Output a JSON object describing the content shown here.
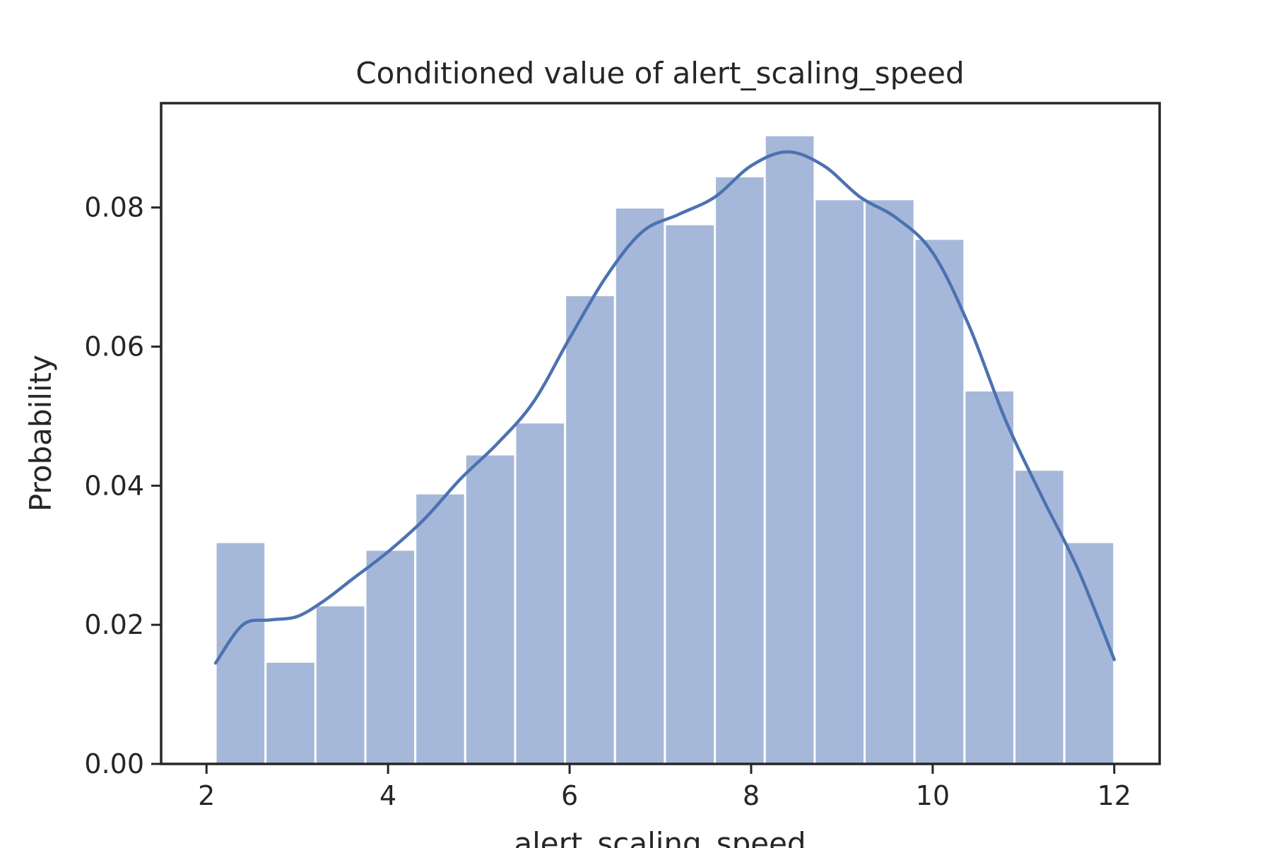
{
  "chart_data": {
    "type": "bar",
    "title": "Conditioned value of alert_scaling_speed",
    "xlabel": "alert_scaling_speed",
    "ylabel": "Probability",
    "xlim": [
      1.5,
      12.5
    ],
    "ylim": [
      0,
      0.095
    ],
    "xticks": [
      2,
      4,
      6,
      8,
      10,
      12
    ],
    "xtick_labels": [
      "2",
      "4",
      "6",
      "8",
      "10",
      "12"
    ],
    "yticks": [
      0,
      0.02,
      0.04,
      0.06,
      0.08
    ],
    "ytick_labels": [
      "0.00",
      "0.02",
      "0.04",
      "0.06",
      "0.08"
    ],
    "grid": false,
    "bin_edges": [
      2.1,
      2.65,
      3.2,
      3.75,
      4.3,
      4.85,
      5.4,
      5.95,
      6.5,
      7.05,
      7.6,
      8.15,
      8.7,
      9.25,
      9.8,
      10.35,
      10.9,
      11.45,
      12.0
    ],
    "values": [
      0.0319,
      0.0147,
      0.0228,
      0.0308,
      0.0389,
      0.0445,
      0.0491,
      0.0674,
      0.08,
      0.0776,
      0.0845,
      0.0904,
      0.0812,
      0.0812,
      0.0755,
      0.0537,
      0.0423,
      0.0319
    ],
    "series": [
      {
        "type": "kde-line",
        "x": [
          2.1,
          2.4,
          2.7,
          3.0,
          3.3,
          3.6,
          4.0,
          4.4,
          4.8,
          5.2,
          5.6,
          6.0,
          6.4,
          6.8,
          7.2,
          7.6,
          8.0,
          8.4,
          8.8,
          9.2,
          9.6,
          10.0,
          10.4,
          10.8,
          11.2,
          11.6,
          12.0
        ],
        "values": [
          0.0145,
          0.02,
          0.0207,
          0.0212,
          0.0235,
          0.0265,
          0.0305,
          0.0352,
          0.041,
          0.046,
          0.052,
          0.0612,
          0.07,
          0.0765,
          0.079,
          0.0815,
          0.086,
          0.088,
          0.086,
          0.0815,
          0.0785,
          0.0735,
          0.063,
          0.0495,
          0.0385,
          0.028,
          0.015
        ]
      }
    ],
    "colors": {
      "bar": "#a6b8d9",
      "line": "#4c72b0",
      "axis": "#262626"
    }
  }
}
